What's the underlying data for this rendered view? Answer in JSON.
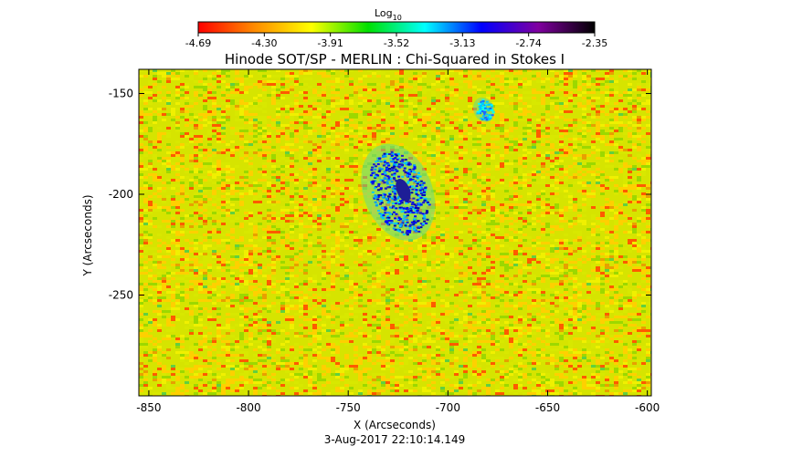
{
  "chart_data": {
    "type": "heatmap",
    "title": "Hinode SOT/SP - MERLIN : Chi-Squared in Stokes I",
    "xlabel": "X (Arcseconds)",
    "ylabel": "Y (Arcseconds)",
    "xlim": [
      -855,
      -598
    ],
    "ylim": [
      -300,
      -138
    ],
    "x_ticks": [
      -850,
      -800,
      -750,
      -700,
      -650,
      -600
    ],
    "y_ticks": [
      -150,
      -200,
      -250
    ],
    "colorbar": {
      "label": "Log",
      "label_subscript": "10",
      "min": -4.69,
      "max": -2.35,
      "tick_labels": [
        "-4.69",
        "-4.30",
        "-3.91",
        "-3.52",
        "-3.13",
        "-2.74",
        "-2.35"
      ],
      "colors": [
        "#ff0000",
        "#ff8c00",
        "#ffff00",
        "#00e000",
        "#00ffff",
        "#0000ff",
        "#8000a0",
        "#000000"
      ]
    },
    "background_colors": [
      "#ffd000",
      "#d8e800",
      "#f0f000",
      "#9cd800",
      "#ff5a00",
      "#e8a000",
      "#60d040"
    ],
    "features": [
      {
        "name": "sunspot",
        "x": -725,
        "y": -199,
        "value": -3.0,
        "colors": [
          "#00c8ff",
          "#0096ff",
          "#0000ff",
          "#0000b4",
          "#1e1ec8"
        ]
      },
      {
        "name": "pore",
        "x": -682,
        "y": -158,
        "value": -3.3,
        "colors": [
          "#1e64ff",
          "#00c8ff",
          "#00ffff"
        ]
      }
    ],
    "timestamp": "3-Aug-2017 22:10:14.149"
  }
}
